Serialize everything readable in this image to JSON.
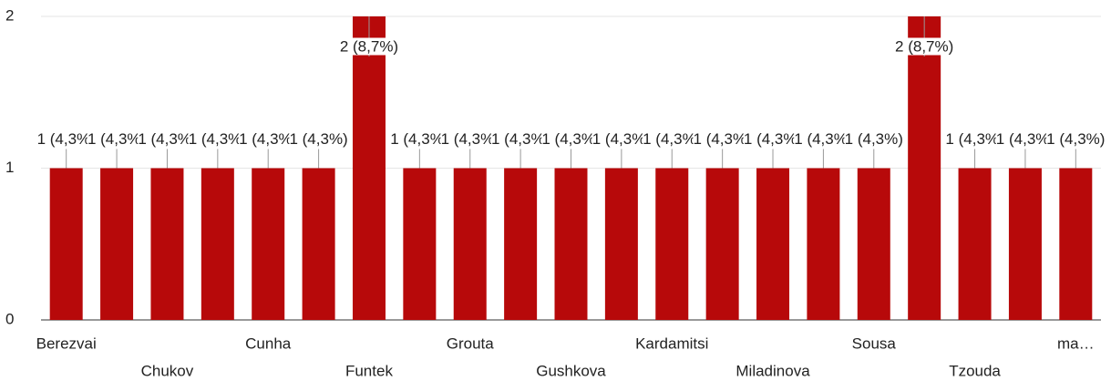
{
  "chart_data": {
    "type": "bar",
    "categories": [
      "Berezvai",
      null,
      "Chukov",
      null,
      "Cunha",
      null,
      "Funtek",
      null,
      "Grouta",
      null,
      "Gushkova",
      null,
      "Kardamitsi",
      null,
      "Miladinova",
      null,
      "Sousa",
      null,
      "Tzouda",
      null,
      "ma…"
    ],
    "values": [
      1,
      1,
      1,
      1,
      1,
      1,
      2,
      1,
      1,
      1,
      1,
      1,
      1,
      1,
      1,
      1,
      1,
      2,
      1,
      1,
      1
    ],
    "value_labels": [
      "1 (4,3%)",
      "1 (4,3%)",
      "1 (4,3%)",
      "1 (4,3%)",
      "1 (4,3%)",
      "1 (4,3%)",
      "2 (8,7%)",
      "1 (4,3%)",
      "1 (4,3%)",
      "1 (4,3%)",
      "1 (4,3%)",
      "1 (4,3%)",
      "1 (4,3%)",
      "1 (4,3%)",
      "1 (4,3%)",
      "1 (4,3%)",
      "1 (4,3%)",
      "2 (8,7%)",
      "1 (4,3%)",
      "1 (4,3%)",
      "1 (4,3%)"
    ],
    "color": "#b7090a",
    "ylim": [
      0,
      2
    ],
    "yticks": [
      0,
      1,
      2
    ],
    "grid": true
  }
}
